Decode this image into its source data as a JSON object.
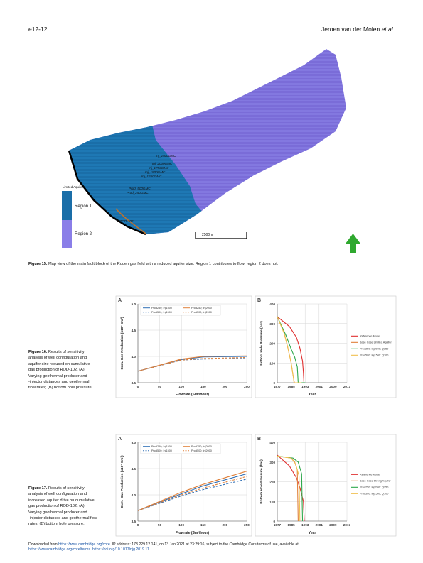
{
  "header": {
    "page_number": "e12-12",
    "author": "Jeroen van der Molen",
    "et_al": "et al."
  },
  "figure15": {
    "caption_label": "Figure 15.",
    "caption_text": "Map view of the main fault block of the Roden gas field with a reduced aquifer size. Region 1 contributes to flow, region 2 does not.",
    "legend_title": "Limited Aquifer",
    "legend_items": [
      {
        "label": "Region 1",
        "color": "#1a6ea8"
      },
      {
        "label": "Region 2",
        "color": "#8a7ee8"
      }
    ],
    "well_labels": [
      "Inj_2500GMC",
      "Inj_2000GMC",
      "Inj_1750GMC",
      "Inj_1500GMC",
      "Inj_1250GMC",
      "Prod_500GMC",
      "Prod_250GMC",
      "ROD-102"
    ],
    "scale_label": "2500m",
    "colors": {
      "region1": "#1a6ea8",
      "region2": "#7a6cd8",
      "well": "#c0722c",
      "arrow": "#2fa82f"
    }
  },
  "figure16": {
    "caption_label": "Figure 16.",
    "caption_lines": [
      "Results of sensitivity",
      "analysis of well configuration and",
      "aquifer size reduced on cumulative",
      "gas production of ROD-102. (A)",
      "Varying geothermal producer and",
      "-injector distances and geothermal",
      "flow rates; (B) bottom hole pressure."
    ]
  },
  "figure17": {
    "caption_label": "Figure 17.",
    "caption_lines": [
      "Results of sensitivity",
      "analysis of well configuration and",
      "increased aquifer drive on cumulative",
      "gas production of ROD-102. (A)",
      "Varying geothermal producer and",
      "-injector distances and geothermal flow",
      "rates; (B) bottom hole pressure."
    ]
  },
  "chart_data": [
    {
      "type": "line",
      "panel": "A",
      "figure": "16",
      "xlabel": "Flowrate (Sm³/hour)",
      "ylabel": "Cum. Gas Production (x10⁹ Sm³)",
      "xlim": [
        0,
        250
      ],
      "ylim": [
        3.5,
        5.0
      ],
      "xticks": [
        "0",
        "50",
        "100",
        "150",
        "200",
        "250"
      ],
      "yticks": [
        "3.5",
        "4.0",
        "4.5",
        "5.0"
      ],
      "grid": true,
      "legend_position": "top-left",
      "x": [
        0,
        100,
        150,
        250
      ],
      "series": [
        {
          "name": "Prod250; Inj1500",
          "color": "#2f6fb5",
          "dash": false,
          "values": [
            3.72,
            3.94,
            3.99,
            4.0
          ]
        },
        {
          "name": "Prod250; Inj2000",
          "color": "#e0803a",
          "dash": false,
          "values": [
            3.72,
            3.95,
            4.0,
            4.01
          ]
        },
        {
          "name": "Prod500; Inj1500",
          "color": "#2f6fb5",
          "dash": true,
          "values": [
            3.72,
            3.93,
            3.95,
            3.96
          ]
        },
        {
          "name": "Prod500; Inj2000",
          "color": "#e0803a",
          "dash": true,
          "values": [
            3.72,
            3.93,
            3.96,
            3.98
          ]
        }
      ]
    },
    {
      "type": "line",
      "panel": "B",
      "figure": "16",
      "xlabel": "Year",
      "ylabel": "Bottom Hole Pressure (bar)",
      "xlim": [
        1977,
        2017
      ],
      "ylim": [
        0,
        400
      ],
      "xticks": [
        "1977",
        "1985",
        "1993",
        "2001",
        "2009",
        "2017"
      ],
      "yticks": [
        "0",
        "100",
        "200",
        "300",
        "400"
      ],
      "grid": true,
      "legend_position": "right",
      "series": [
        {
          "name": "Reference Model",
          "color": "#e03030",
          "points": [
            [
              1977,
              335
            ],
            [
              1984,
              285
            ],
            [
              1988,
              230
            ],
            [
              1990,
              175
            ],
            [
              1991.5,
              110
            ],
            [
              1992,
              50
            ],
            [
              1992.3,
              0
            ]
          ]
        },
        {
          "name": "Base Case Limited Aquifer",
          "color": "#e0803a",
          "points": [
            [
              1977,
              335
            ],
            [
              1981,
              250
            ],
            [
              1983,
              180
            ],
            [
              1985,
              100
            ],
            [
              1986,
              40
            ],
            [
              1986.8,
              0
            ],
            [
              1990,
              0
            ]
          ]
        },
        {
          "name": "Prod250; Inj2000; Q250",
          "color": "#2ea84c",
          "points": [
            [
              1977,
              335
            ],
            [
              1982,
              240
            ],
            [
              1985,
              170
            ],
            [
              1987,
              130
            ],
            [
              1988.5,
              80
            ],
            [
              1989,
              0
            ],
            [
              1993,
              0
            ]
          ]
        },
        {
          "name": "Prod500; Inj1500; Q100",
          "color": "#f0c050",
          "points": [
            [
              1977,
              335
            ],
            [
              1981,
              250
            ],
            [
              1983,
              180
            ],
            [
              1985,
              100
            ],
            [
              1986.2,
              30
            ],
            [
              1986.6,
              0
            ],
            [
              1991,
              0
            ]
          ]
        }
      ]
    },
    {
      "type": "line",
      "panel": "A",
      "figure": "17",
      "xlabel": "Flowrate (Sm³/hour)",
      "ylabel": "Cum. Gas Production (x10⁹ Sm³)",
      "xlim": [
        0,
        250
      ],
      "ylim": [
        3.5,
        5.0
      ],
      "xticks": [
        "0",
        "50",
        "100",
        "150",
        "200",
        "250"
      ],
      "yticks": [
        "3.5",
        "4.0",
        "4.5",
        "5.0"
      ],
      "grid": true,
      "legend_position": "top-left",
      "x": [
        0,
        100,
        150,
        250
      ],
      "series": [
        {
          "name": "Prod250; Inj1500",
          "color": "#2f6fb5",
          "dash": false,
          "values": [
            3.7,
            4.02,
            4.17,
            4.4
          ]
        },
        {
          "name": "Prod250; Inj2000",
          "color": "#e0803a",
          "dash": false,
          "values": [
            3.7,
            4.05,
            4.2,
            4.45
          ]
        },
        {
          "name": "Prod500; Inj1500",
          "color": "#2f6fb5",
          "dash": true,
          "values": [
            3.7,
            3.98,
            4.1,
            4.3
          ]
        },
        {
          "name": "Prod500; Inj2000",
          "color": "#e0803a",
          "dash": true,
          "values": [
            3.7,
            4.0,
            4.13,
            4.35
          ]
        }
      ]
    },
    {
      "type": "line",
      "panel": "B",
      "figure": "17",
      "xlabel": "Year",
      "ylabel": "Bottom Hole Pressure (bar)",
      "xlim": [
        1977,
        2017
      ],
      "ylim": [
        0,
        400
      ],
      "xticks": [
        "1977",
        "1985",
        "1993",
        "2001",
        "2009",
        "2017"
      ],
      "yticks": [
        "0",
        "100",
        "200",
        "300",
        "400"
      ],
      "grid": true,
      "legend_position": "right",
      "series": [
        {
          "name": "Reference Model",
          "color": "#e03030",
          "points": [
            [
              1977,
              335
            ],
            [
              1984,
              280
            ],
            [
              1988,
              220
            ],
            [
              1990,
              170
            ],
            [
              1992,
              100
            ],
            [
              1992.5,
              0
            ]
          ]
        },
        {
          "name": "Base Case Strong Aquifer",
          "color": "#e0803a",
          "points": [
            [
              1977,
              330
            ],
            [
              1985,
              320
            ],
            [
              1987,
              300
            ],
            [
              1988.5,
              260
            ],
            [
              1989,
              0
            ]
          ]
        },
        {
          "name": "Prod250; Inj2000; Q250",
          "color": "#2ea84c",
          "points": [
            [
              1977,
              330
            ],
            [
              1986,
              320
            ],
            [
              1989,
              300
            ],
            [
              1991,
              240
            ],
            [
              1991.5,
              0
            ]
          ]
        },
        {
          "name": "Prod500; Inj1500; Q100",
          "color": "#f0c050",
          "points": [
            [
              1977,
              330
            ],
            [
              1985,
              320
            ],
            [
              1987.5,
              290
            ],
            [
              1989.5,
              230
            ],
            [
              1990,
              0
            ]
          ]
        }
      ]
    }
  ],
  "footer": {
    "line1_a": "Downloaded from ",
    "line1_link": "https://www.cambridge.org/core",
    "line1_b": ". IP address: 173.229.12.141, on 13 Jan 2021 at 23:29:16, subject to the Cambridge Core terms of use, available at",
    "line2_link": "https://www.cambridge.org/core/terms",
    "line2_b": ". ",
    "line2_link2": "https://doi.org/10.1017/njg.2019.11"
  }
}
